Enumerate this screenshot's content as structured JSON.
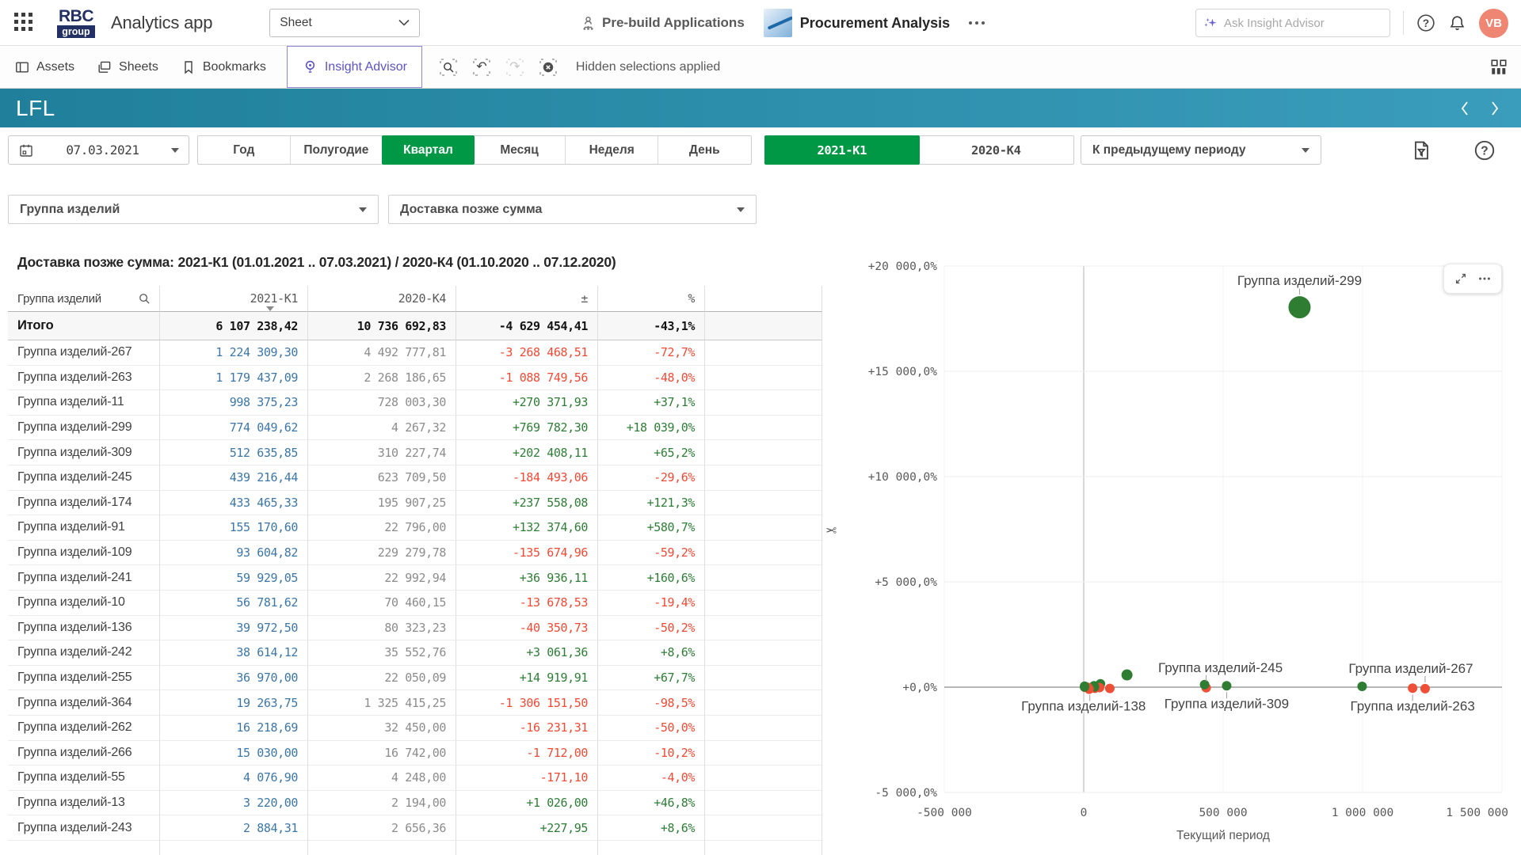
{
  "colors": {
    "positive": "#2e7d36",
    "negative": "#f04a35",
    "current_value": "#3c76a6",
    "previous_value": "#8c8c8c",
    "selected_green": "#009845",
    "accent_purple": "#5b54c4",
    "header_teal_from": "#20809b",
    "header_teal_to": "#3a9dbb",
    "avatar_coral": "#ee8673",
    "dot_positive": "#2f7d33",
    "dot_negative": "#ef4f36"
  },
  "icons": {
    "undo": "↶",
    "redo": "↷",
    "scissors": "✂"
  },
  "app_bar": {
    "logo": {
      "line1": "RBC",
      "line2": "group"
    },
    "title": "Analytics app",
    "sheet_select": {
      "value": "Sheet"
    },
    "nav": {
      "prebuild_label": "Pre-build Applications",
      "app_name": "Procurement Analysis"
    },
    "search": {
      "placeholder": "Ask Insight Advisor"
    },
    "avatar": {
      "initials": "VB"
    }
  },
  "toolbar": {
    "items": [
      {
        "label": "Assets"
      },
      {
        "label": "Sheets"
      },
      {
        "label": "Bookmarks"
      },
      {
        "label": "Insight Advisor"
      }
    ],
    "hidden_selections_label": "Hidden selections applied"
  },
  "sheet_header": {
    "title": "LFL"
  },
  "filters": {
    "date": {
      "value": "07.03.2021"
    },
    "periods": [
      "Год",
      "Полугодие",
      "Квартал",
      "Месяц",
      "Неделя",
      "День"
    ],
    "period_selected_index": 2,
    "compare_periods": [
      "2021-К1",
      "2020-К4"
    ],
    "compare_selected_index": 0,
    "compare_mode": {
      "value": "К предыдущему периоду"
    }
  },
  "field_filters": [
    {
      "label": "Группа изделий"
    },
    {
      "label": "Доставка позже сумма"
    }
  ],
  "table": {
    "title": "Доставка позже сумма: 2021-К1 (01.01.2021 .. 07.03.2021) / 2020-К4 (01.10.2020 .. 07.12.2020)",
    "columns": [
      "Группа изделий",
      "2021-К1",
      "2020-К4",
      "±",
      "%"
    ],
    "total": {
      "name": "Итого",
      "cur": "6 107 238,42",
      "prev": "10 736 692,83",
      "diff": "-4 629 454,41",
      "pct": "-43,1%"
    },
    "rows": [
      {
        "name": "Группа изделий-267",
        "cur": "1 224 309,30",
        "prev": "4 492 777,81",
        "diff": "-3 268 468,51",
        "pct": "-72,7%"
      },
      {
        "name": "Группа изделий-263",
        "cur": "1 179 437,09",
        "prev": "2 268 186,65",
        "diff": "-1 088 749,56",
        "pct": "-48,0%"
      },
      {
        "name": "Группа изделий-11",
        "cur": "998 375,23",
        "prev": "728 003,30",
        "diff": "+270 371,93",
        "pct": "+37,1%"
      },
      {
        "name": "Группа изделий-299",
        "cur": "774 049,62",
        "prev": "4 267,32",
        "diff": "+769 782,30",
        "pct": "+18 039,0%"
      },
      {
        "name": "Группа изделий-309",
        "cur": "512 635,85",
        "prev": "310 227,74",
        "diff": "+202 408,11",
        "pct": "+65,2%"
      },
      {
        "name": "Группа изделий-245",
        "cur": "439 216,44",
        "prev": "623 709,50",
        "diff": "-184 493,06",
        "pct": "-29,6%"
      },
      {
        "name": "Группа изделий-174",
        "cur": "433 465,33",
        "prev": "195 907,25",
        "diff": "+237 558,08",
        "pct": "+121,3%"
      },
      {
        "name": "Группа изделий-91",
        "cur": "155 170,60",
        "prev": "22 796,00",
        "diff": "+132 374,60",
        "pct": "+580,7%"
      },
      {
        "name": "Группа изделий-109",
        "cur": "93 604,82",
        "prev": "229 279,78",
        "diff": "-135 674,96",
        "pct": "-59,2%"
      },
      {
        "name": "Группа изделий-241",
        "cur": "59 929,05",
        "prev": "22 992,94",
        "diff": "+36 936,11",
        "pct": "+160,6%"
      },
      {
        "name": "Группа изделий-10",
        "cur": "56 781,62",
        "prev": "70 460,15",
        "diff": "-13 678,53",
        "pct": "-19,4%"
      },
      {
        "name": "Группа изделий-136",
        "cur": "39 972,50",
        "prev": "80 323,23",
        "diff": "-40 350,73",
        "pct": "-50,2%"
      },
      {
        "name": "Группа изделий-242",
        "cur": "38 614,12",
        "prev": "35 552,76",
        "diff": "+3 061,36",
        "pct": "+8,6%"
      },
      {
        "name": "Группа изделий-255",
        "cur": "36 970,00",
        "prev": "22 050,09",
        "diff": "+14 919,91",
        "pct": "+67,7%"
      },
      {
        "name": "Группа изделий-364",
        "cur": "19 263,75",
        "prev": "1 325 415,25",
        "diff": "-1 306 151,50",
        "pct": "-98,5%"
      },
      {
        "name": "Группа изделий-262",
        "cur": "16 218,69",
        "prev": "32 450,00",
        "diff": "-16 231,31",
        "pct": "-50,0%"
      },
      {
        "name": "Группа изделий-266",
        "cur": "15 030,00",
        "prev": "16 742,00",
        "diff": "-1 712,00",
        "pct": "-10,2%"
      },
      {
        "name": "Группа изделий-55",
        "cur": "4 076,90",
        "prev": "4 248,00",
        "diff": "-171,10",
        "pct": "-4,0%"
      },
      {
        "name": "Группа изделий-13",
        "cur": "3 220,00",
        "prev": "2 194,00",
        "diff": "+1 026,00",
        "pct": "+46,8%"
      },
      {
        "name": "Группа изделий-243",
        "cur": "2 884,31",
        "prev": "2 656,36",
        "diff": "+227,95",
        "pct": "+8,6%"
      }
    ]
  },
  "chart_data": {
    "type": "scatter",
    "xlabel": "Текущий период",
    "ylabel": "",
    "xlim": [
      -500000,
      1500000
    ],
    "ylim": [
      -5000,
      20000
    ],
    "grid": true,
    "x_ticks": [
      {
        "v": -500000,
        "label": "-500 000"
      },
      {
        "v": 0,
        "label": "0"
      },
      {
        "v": 500000,
        "label": "500 000"
      },
      {
        "v": 1000000,
        "label": "1 000 000"
      },
      {
        "v": 1500000,
        "label": "1 500 000"
      }
    ],
    "y_ticks": [
      {
        "v": 20000,
        "label": "+20 000,0%"
      },
      {
        "v": 15000,
        "label": "+15 000,0%"
      },
      {
        "v": 10000,
        "label": "+10 000,0%"
      },
      {
        "v": 5000,
        "label": "+5 000,0%"
      },
      {
        "v": 0,
        "label": "+0,0%"
      },
      {
        "v": -5000,
        "label": "-5 000,0%"
      }
    ],
    "points": [
      {
        "name": "Группа изделий-299",
        "x": 774049.62,
        "y": 18039.0,
        "label": "above",
        "dx": 0
      },
      {
        "name": "Группа изделий-267",
        "x": 1224309.3,
        "y": -72.7,
        "label": "above",
        "dx": -18
      },
      {
        "name": "Группа изделий-263",
        "x": 1179437.09,
        "y": -48.0,
        "label": "below",
        "dx": 0
      },
      {
        "name": "Группа изделий-309",
        "x": 512635.85,
        "y": 65.2,
        "label": "below",
        "dx": 0
      },
      {
        "name": "Группа изделий-245",
        "x": 439216.44,
        "y": -29.6,
        "label": "above",
        "dx": 18
      },
      {
        "name": "Группа изделий-138",
        "x": 22000,
        "y": -60.0,
        "label": "below",
        "dx": -8
      },
      {
        "name": "Группа изделий-174",
        "x": 433465.33,
        "y": 121.3
      },
      {
        "name": "Группа изделий-11",
        "x": 998375.23,
        "y": 37.1
      },
      {
        "name": "Группа изделий-91",
        "x": 155170.6,
        "y": 580.7
      },
      {
        "name": "Группа изделий-109",
        "x": 93604.82,
        "y": -59.2
      },
      {
        "name": "Группа изделий-241",
        "x": 59929.05,
        "y": 160.6
      },
      {
        "name": "Группа изделий-10",
        "x": 56781.62,
        "y": -19.4
      },
      {
        "name": "Группа изделий-136",
        "x": 39972.5,
        "y": -50.2
      },
      {
        "name": "Группа изделий-242",
        "x": 38614.12,
        "y": 8.6
      },
      {
        "name": "Группа изделий-255",
        "x": 36970.0,
        "y": 67.7
      },
      {
        "name": "Группа изделий-364",
        "x": 19263.75,
        "y": -98.5
      },
      {
        "name": "Группа изделий-262",
        "x": 16218.69,
        "y": -50.0
      },
      {
        "name": "Группа изделий-266",
        "x": 15030.0,
        "y": -10.2
      },
      {
        "name": "Группа изделий-55",
        "x": 4076.9,
        "y": -4.0
      },
      {
        "name": "Группа изделий-13",
        "x": 3220.0,
        "y": 46.8
      },
      {
        "name": "Группа изделий-243",
        "x": 2884.31,
        "y": 8.6
      }
    ]
  }
}
